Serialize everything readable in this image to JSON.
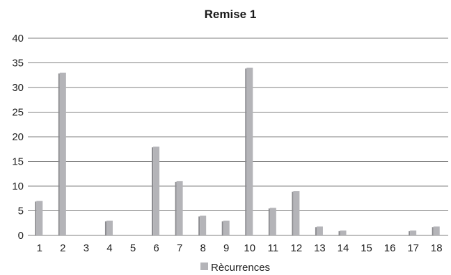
{
  "chart_data": {
    "type": "bar",
    "title": "Remise 1",
    "categories": [
      "1",
      "2",
      "3",
      "4",
      "5",
      "6",
      "7",
      "8",
      "9",
      "10",
      "11",
      "12",
      "13",
      "14",
      "15",
      "16",
      "17",
      "18"
    ],
    "series": [
      {
        "name": "Récurrences",
        "values": [
          7,
          33,
          0,
          3,
          0,
          18,
          11,
          4,
          3,
          34,
          5.6,
          9,
          1.8,
          1,
          0,
          0,
          1,
          1.8
        ]
      }
    ],
    "legend_label": "Rècurrences",
    "ylim": [
      0,
      40
    ],
    "yticks": [
      0,
      5,
      10,
      15,
      20,
      25,
      30,
      35,
      40
    ],
    "grid": true,
    "legend_position": "bottom",
    "colors": {
      "bar": "#b4b4b8",
      "bar_shadow": "#8a8a8e",
      "grid": "#7f7f7f"
    }
  }
}
